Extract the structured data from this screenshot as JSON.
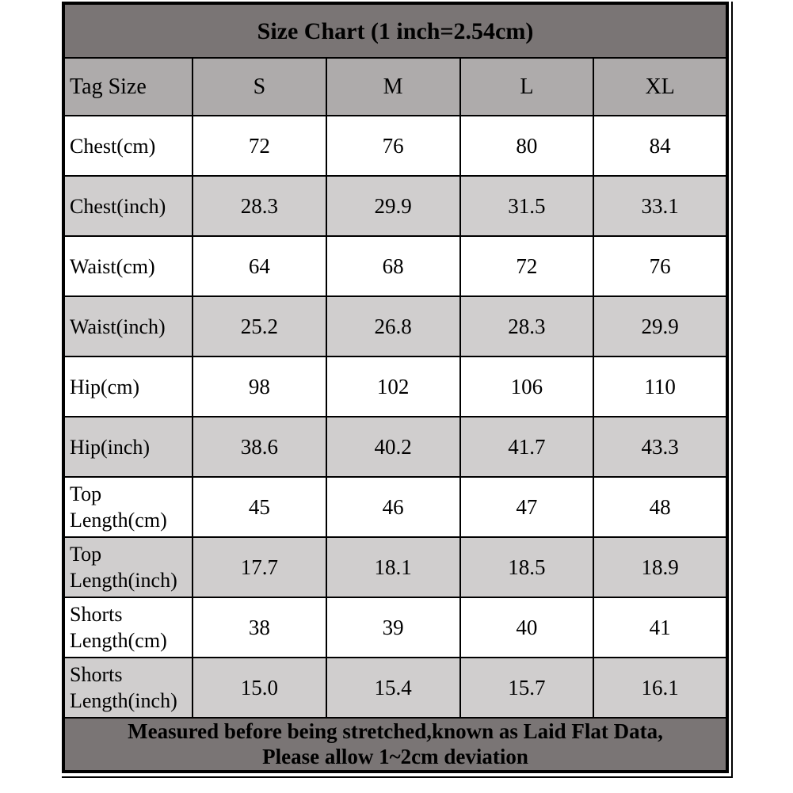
{
  "chart_data": {
    "type": "table",
    "title": "Size Chart (1 inch=2.54cm)",
    "columns": [
      "Tag Size",
      "S",
      "M",
      "L",
      "XL"
    ],
    "rows": [
      {
        "label": "Chest(cm)",
        "values": [
          "72",
          "76",
          "80",
          "84"
        ],
        "shaded": false
      },
      {
        "label": "Chest(inch)",
        "values": [
          "28.3",
          "29.9",
          "31.5",
          "33.1"
        ],
        "shaded": true
      },
      {
        "label": "Waist(cm)",
        "values": [
          "64",
          "68",
          "72",
          "76"
        ],
        "shaded": false
      },
      {
        "label": "Waist(inch)",
        "values": [
          "25.2",
          "26.8",
          "28.3",
          "29.9"
        ],
        "shaded": true
      },
      {
        "label": "Hip(cm)",
        "values": [
          "98",
          "102",
          "106",
          "110"
        ],
        "shaded": false
      },
      {
        "label": "Hip(inch)",
        "values": [
          "38.6",
          "40.2",
          "41.7",
          "43.3"
        ],
        "shaded": true
      },
      {
        "label": "Top Length(cm)",
        "values": [
          "45",
          "46",
          "47",
          "48"
        ],
        "shaded": false
      },
      {
        "label": "Top Length(inch)",
        "values": [
          "17.7",
          "18.1",
          "18.5",
          "18.9"
        ],
        "shaded": true
      },
      {
        "label": "Shorts Length(cm)",
        "values": [
          "38",
          "39",
          "40",
          "41"
        ],
        "shaded": false
      },
      {
        "label": "Shorts Length(inch)",
        "values": [
          "15.0",
          "15.4",
          "15.7",
          "16.1"
        ],
        "shaded": true
      }
    ],
    "footer_lines": [
      "Measured before being stretched,known as Laid Flat Data,",
      "Please allow 1~2cm deviation"
    ],
    "layout_hints": {
      "grid": "all borders on",
      "title_position": "top banner",
      "footer_position": "bottom banner"
    }
  },
  "colors": {
    "banner_background": "#7a7575",
    "header_background": "#aeabab",
    "shaded_row_background": "#d0cece",
    "plain_row_background": "#ffffff",
    "border": "#000000",
    "text": "#000000"
  }
}
